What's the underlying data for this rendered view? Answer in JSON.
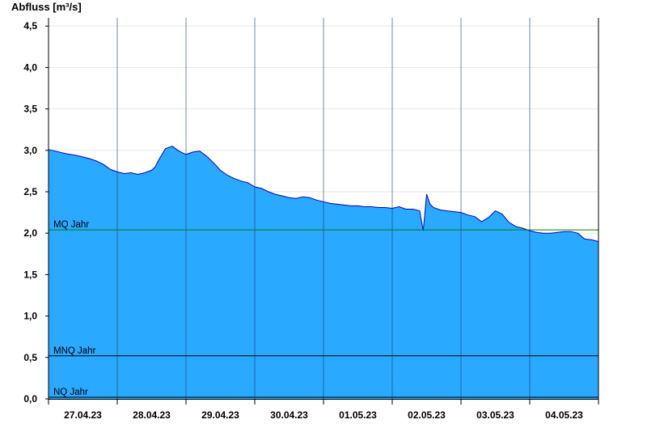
{
  "chart_data": {
    "type": "area",
    "title": "Abfluss [m³/s]",
    "xlabel": "",
    "ylabel": "Abfluss [m³/s]",
    "ylim": [
      0,
      4.6
    ],
    "xlim": [
      "27.04.23",
      "05.05.23"
    ],
    "grid": true,
    "area_color": "#29a9ff",
    "line_color": "#0000cc",
    "y_ticks": [
      "0,0",
      "0,5",
      "1,0",
      "1,5",
      "2,0",
      "2,5",
      "3,0",
      "3,5",
      "4,0",
      "4,5"
    ],
    "x_ticks": [
      "27.04.23",
      "28.04.23",
      "29.04.23",
      "30.04.23",
      "01.05.23",
      "02.05.23",
      "03.05.23",
      "04.05.23"
    ],
    "reference_lines": [
      {
        "label": "MQ Jahr",
        "value": 2.04,
        "color": "#008000"
      },
      {
        "label": "MNQ Jahr",
        "value": 0.52,
        "color": "#000000"
      },
      {
        "label": "NQ Jahr",
        "value": 0.02,
        "color": "#000000"
      }
    ],
    "series": [
      {
        "x": [
          0.0,
          0.1,
          0.25,
          0.4,
          0.5,
          0.6,
          0.7,
          0.8,
          0.9,
          1.0,
          1.1,
          1.2,
          1.3,
          1.4,
          1.5,
          1.55,
          1.6,
          1.7,
          1.8,
          1.9,
          2.0,
          2.1,
          2.2,
          2.3,
          2.4,
          2.5,
          2.6,
          2.7,
          2.8,
          2.9,
          3.0,
          3.1,
          3.2,
          3.3,
          3.4,
          3.5,
          3.6,
          3.7,
          3.8,
          3.9,
          4.0,
          4.1,
          4.2,
          4.3,
          4.4,
          4.5,
          4.6,
          4.7,
          4.8,
          4.9,
          5.0,
          5.1,
          5.2,
          5.3,
          5.4,
          5.45,
          5.5,
          5.55,
          5.6,
          5.7,
          5.8,
          5.9,
          6.0,
          6.1,
          6.2,
          6.3,
          6.4,
          6.5,
          6.6,
          6.7,
          6.8,
          6.9,
          7.0,
          7.1,
          7.2,
          7.3,
          7.4,
          7.5,
          7.6,
          7.7,
          7.8,
          7.9,
          8.0
        ],
        "y": [
          3.01,
          2.99,
          2.96,
          2.94,
          2.92,
          2.9,
          2.87,
          2.83,
          2.77,
          2.74,
          2.72,
          2.73,
          2.71,
          2.73,
          2.76,
          2.8,
          2.88,
          3.02,
          3.05,
          2.99,
          2.95,
          2.98,
          2.99,
          2.93,
          2.85,
          2.76,
          2.7,
          2.66,
          2.63,
          2.61,
          2.56,
          2.54,
          2.5,
          2.47,
          2.45,
          2.43,
          2.42,
          2.44,
          2.43,
          2.4,
          2.38,
          2.36,
          2.35,
          2.34,
          2.33,
          2.33,
          2.32,
          2.32,
          2.31,
          2.31,
          2.3,
          2.32,
          2.29,
          2.29,
          2.27,
          2.03,
          2.47,
          2.35,
          2.31,
          2.28,
          2.27,
          2.26,
          2.25,
          2.22,
          2.2,
          2.14,
          2.19,
          2.27,
          2.23,
          2.13,
          2.08,
          2.06,
          2.03,
          2.01,
          2.0,
          2.0,
          2.01,
          2.02,
          2.02,
          2.0,
          1.93,
          1.92,
          1.9
        ]
      }
    ]
  }
}
